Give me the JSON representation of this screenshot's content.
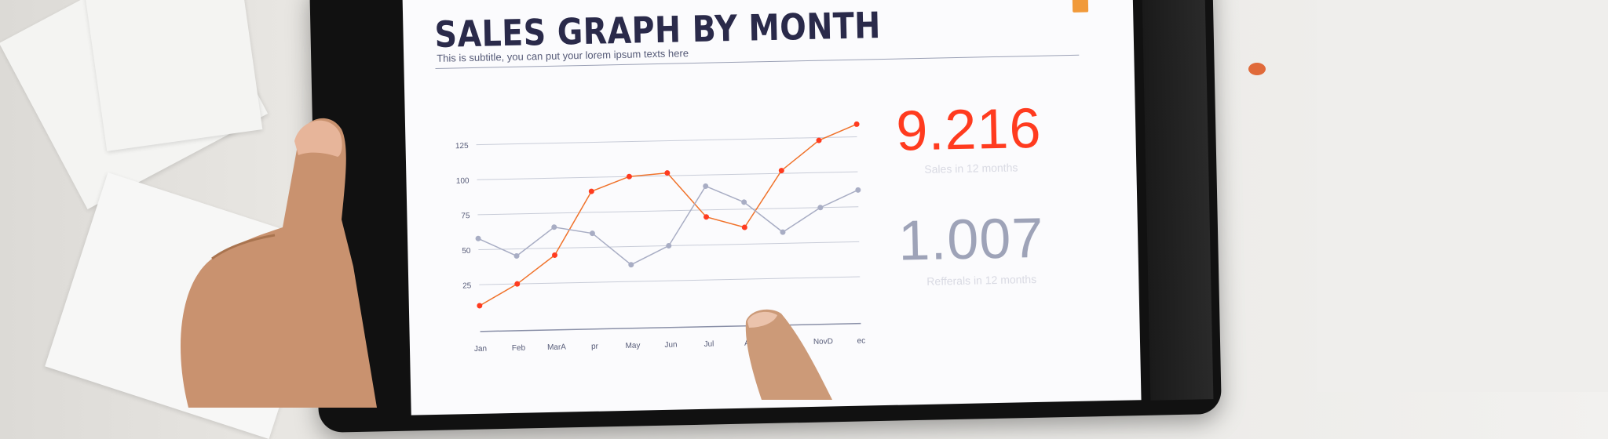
{
  "screen": {
    "title": "SALES GRAPH BY MONTH",
    "subtitle": "This is subtitle, you can put your lorem ipsum texts here"
  },
  "stats": [
    {
      "value": "9.216",
      "label": "Sales in 12 months",
      "color": "#ff3b1f"
    },
    {
      "value": "1.007",
      "label": "Refferals in 12 months",
      "color": "#9ea3b8"
    }
  ],
  "chart_data": {
    "type": "line",
    "categories": [
      "Jan",
      "Feb",
      "MarA",
      "pr",
      "May",
      "Jun",
      "Jul",
      "A",
      "",
      "NovD",
      "ec"
    ],
    "yticks": [
      "125",
      "100",
      "75",
      "50",
      "25"
    ],
    "ylim": [
      0,
      140
    ],
    "series": [
      {
        "color": "#f0722a",
        "values": [
          10,
          25,
          45,
          90,
          100,
          102,
          70,
          62,
          102,
          123,
          134
        ]
      },
      {
        "color": "#a8adc4",
        "values": [
          58,
          45,
          65,
          60,
          37,
          50,
          92,
          80,
          58,
          75,
          87
        ]
      }
    ]
  },
  "colors": {
    "accent_orange": "#f0722a",
    "accent_red": "#ff3b1f",
    "title_navy": "#2a2a4a",
    "grid": "#c8ccd8"
  }
}
